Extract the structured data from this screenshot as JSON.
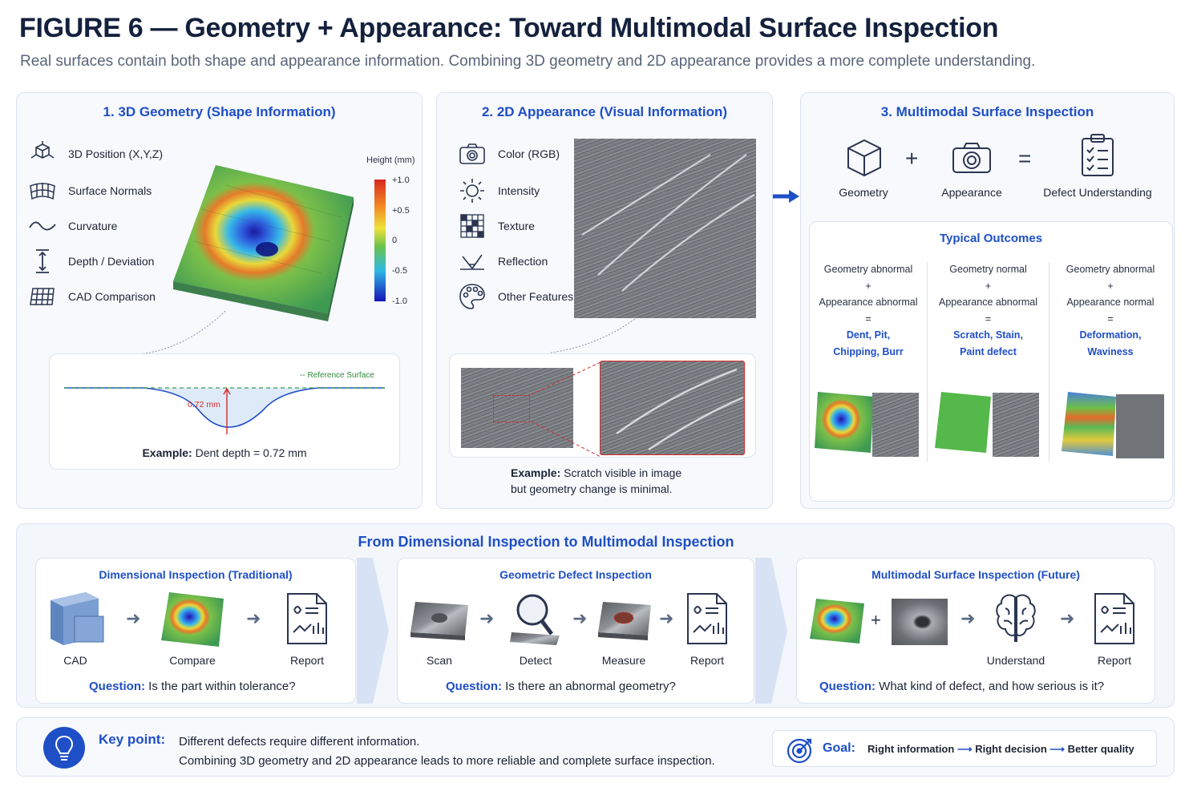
{
  "title": "FIGURE 6 — Geometry + Appearance: Toward Multimodal Surface Inspection",
  "subtitle": "Real surfaces contain both shape and appearance information. Combining 3D geometry and 2D appearance provides a more complete understanding.",
  "panel1": {
    "title": "1. 3D Geometry (Shape Information)",
    "items": [
      {
        "label": "3D Position (X,Y,Z)",
        "icon": "axes-cube-icon"
      },
      {
        "label": "Surface Normals",
        "icon": "mesh-grid-icon"
      },
      {
        "label": "Curvature",
        "icon": "wave-icon"
      },
      {
        "label": "Depth / Deviation",
        "icon": "vertical-arrow-icon"
      },
      {
        "label": "CAD Comparison",
        "icon": "cad-grid-icon"
      }
    ],
    "legend_title": "Height (mm)",
    "legend_ticks": [
      "+1.0",
      "+0.5",
      "0",
      "-0.5",
      "-1.0"
    ],
    "ref_surface": "Reference Surface",
    "depth_label": "0.72 mm",
    "example_bold": "Example:",
    "example_text": "Dent depth = 0.72 mm"
  },
  "panel2": {
    "title": "2. 2D Appearance (Visual Information)",
    "items": [
      {
        "label": "Color (RGB)",
        "icon": "camera-icon"
      },
      {
        "label": "Intensity",
        "icon": "sun-icon"
      },
      {
        "label": "Texture",
        "icon": "texture-icon"
      },
      {
        "label": "Reflection",
        "icon": "reflection-icon"
      },
      {
        "label": "Other Features",
        "icon": "palette-icon"
      }
    ],
    "example_bold": "Example:",
    "example_line1": "Scratch visible in image",
    "example_line2": "but geometry change is minimal."
  },
  "panel3": {
    "title": "3. Multimodal Surface Inspection",
    "eq": {
      "a": "Geometry",
      "op1": "+",
      "b": "Appearance",
      "op2": "=",
      "c": "Defect Understanding"
    },
    "outcomes_title": "Typical Outcomes",
    "outcomes": [
      {
        "geo": "Geometry abnormal",
        "plus": "+",
        "app": "Appearance abnormal",
        "eq": "=",
        "r1": "Dent, Pit,",
        "r2": "Chipping, Burr"
      },
      {
        "geo": "Geometry normal",
        "plus": "+",
        "app": "Appearance abnormal",
        "eq": "=",
        "r1": "Scratch, Stain,",
        "r2": "Paint defect"
      },
      {
        "geo": "Geometry abnormal",
        "plus": "+",
        "app": "Appearance normal",
        "eq": "=",
        "r1": "Deformation,",
        "r2": "Waviness"
      }
    ]
  },
  "flow": {
    "title": "From Dimensional Inspection to Multimodal Inspection",
    "stages": [
      {
        "title": "Dimensional Inspection (Traditional)",
        "steps": [
          "CAD",
          "Compare",
          "Report"
        ],
        "q_label": "Question:",
        "q_text": "Is the part within tolerance?"
      },
      {
        "title": "Geometric Defect Inspection",
        "steps": [
          "Scan",
          "Detect",
          "Measure",
          "Report"
        ],
        "q_label": "Question:",
        "q_text": "Is there an abnormal geometry?"
      },
      {
        "title": "Multimodal Surface Inspection (Future)",
        "plus": "+",
        "steps": [
          "Understand",
          "Report"
        ],
        "q_label": "Question:",
        "q_text": "What kind of defect, and how serious is it?"
      }
    ]
  },
  "keypoint": {
    "label": "Key point:",
    "line1": "Different defects require different information.",
    "line2": "Combining 3D geometry and 2D appearance leads to more reliable and complete surface inspection."
  },
  "goal": {
    "label": "Goal:",
    "a": "Right information",
    "b": "Right decision",
    "c": "Better quality"
  },
  "colors": {
    "accent": "#1f4fc7",
    "navy": "#14213d",
    "panel_bg": "#f7f9fd",
    "border": "#dce3ef"
  }
}
